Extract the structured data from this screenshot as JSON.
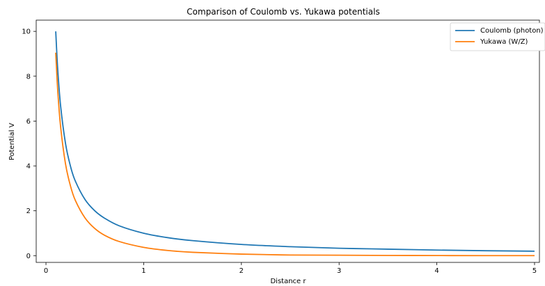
{
  "chart_data": {
    "type": "line",
    "title": "Comparison of Coulomb vs. Yukawa potentials",
    "xlabel": "Distance r",
    "ylabel": "Potential V",
    "xlim": [
      -0.1,
      5.05
    ],
    "ylim": [
      -0.3,
      10.5
    ],
    "xticks": [
      0,
      1,
      2,
      3,
      4,
      5
    ],
    "yticks": [
      0,
      2,
      4,
      6,
      8,
      10
    ],
    "grid": false,
    "legend_position": "top-right",
    "x": [
      0.1,
      0.12,
      0.15,
      0.2,
      0.25,
      0.3,
      0.4,
      0.5,
      0.6,
      0.75,
      1.0,
      1.25,
      1.5,
      2.0,
      2.5,
      3.0,
      3.5,
      4.0,
      4.5,
      5.0
    ],
    "series": [
      {
        "name": "Coulomb (photon)",
        "color": "#1f77b4",
        "values": [
          10.0,
          8.33,
          6.67,
          5.0,
          4.0,
          3.33,
          2.5,
          2.0,
          1.67,
          1.33,
          1.0,
          0.8,
          0.67,
          0.5,
          0.4,
          0.33,
          0.29,
          0.25,
          0.22,
          0.2
        ]
      },
      {
        "name": "Yukawa (W/Z)",
        "color": "#ff7f0e",
        "values": [
          9.05,
          7.39,
          5.74,
          4.09,
          3.12,
          2.47,
          1.68,
          1.21,
          0.91,
          0.63,
          0.37,
          0.23,
          0.15,
          0.07,
          0.03,
          0.02,
          0.01,
          0.005,
          0.002,
          0.001
        ]
      }
    ]
  }
}
